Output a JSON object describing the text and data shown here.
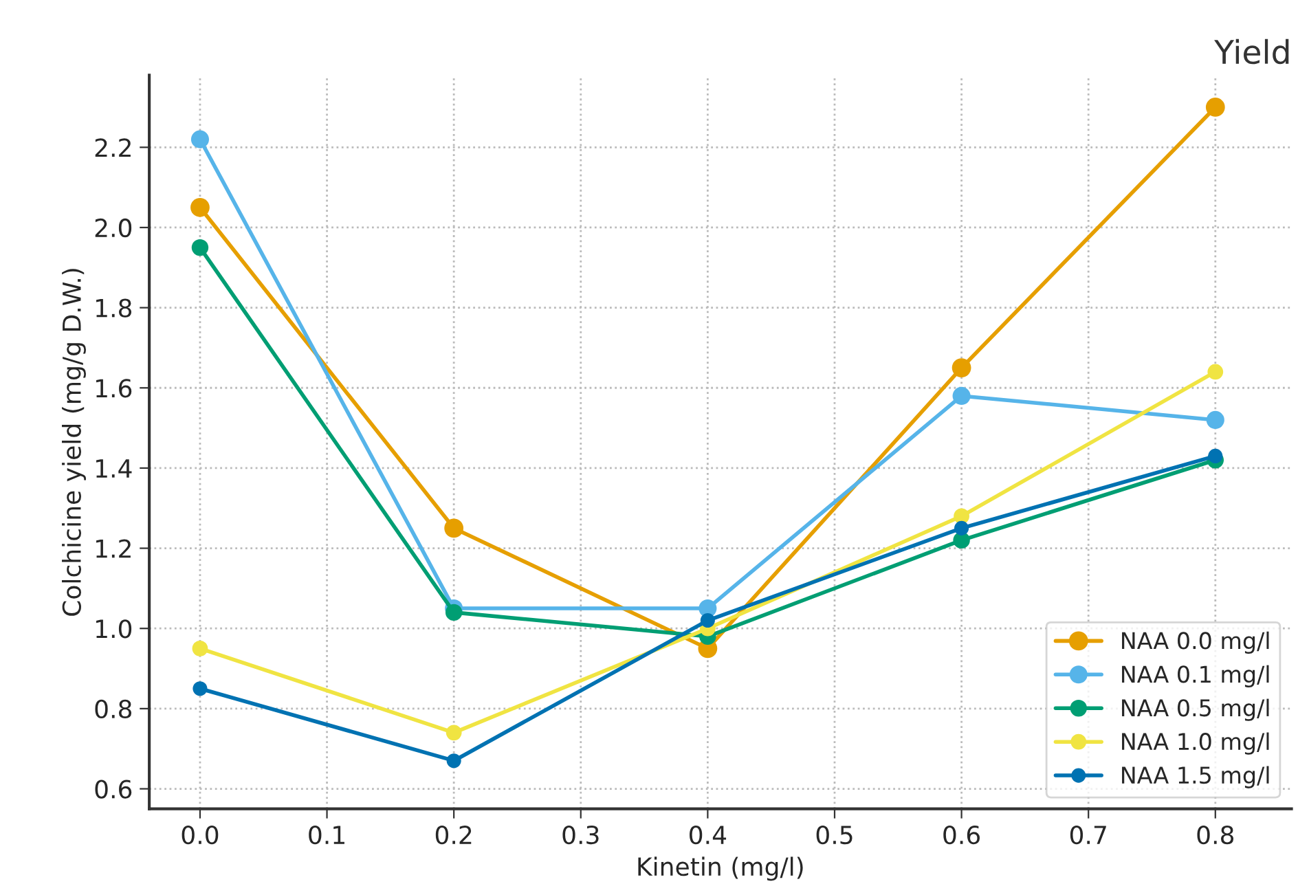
{
  "chart_data": {
    "type": "line",
    "title": "Yield",
    "xlabel": "Kinetin (mg/l)",
    "ylabel": "Colchicine yield (mg/g D.W.)",
    "x": [
      0.0,
      0.2,
      0.4,
      0.6,
      0.8
    ],
    "series": [
      {
        "name": "NAA 0.0 mg/l",
        "color": "#e69f00",
        "values": [
          2.05,
          1.25,
          0.95,
          1.65,
          2.3
        ]
      },
      {
        "name": "NAA 0.1 mg/l",
        "color": "#56b4e9",
        "values": [
          2.22,
          1.05,
          1.05,
          1.58,
          1.52
        ]
      },
      {
        "name": "NAA 0.5 mg/l",
        "color": "#009e73",
        "values": [
          1.95,
          1.04,
          0.98,
          1.22,
          1.42
        ]
      },
      {
        "name": "NAA 1.0 mg/l",
        "color": "#f0e442",
        "values": [
          0.95,
          0.74,
          1.0,
          1.28,
          1.64
        ]
      },
      {
        "name": "NAA 1.5 mg/l",
        "color": "#0072b2",
        "values": [
          0.85,
          0.67,
          1.02,
          1.25,
          1.43
        ]
      }
    ],
    "xlim": [
      -0.04,
      0.86
    ],
    "xticks": [
      {
        "value": 0.0,
        "label": "0.0"
      },
      0.1,
      0.2,
      0.3,
      0.4,
      0.5,
      0.6,
      0.7,
      0.8
    ],
    "ylim": [
      0.55,
      2.38
    ],
    "yticks": [
      0.6,
      0.8,
      {
        "value": 1.0,
        "label": "1.0"
      },
      1.2,
      1.4,
      1.6,
      1.8,
      {
        "value": 2.0,
        "label": "2.0"
      },
      2.2
    ],
    "grid": true,
    "legend": "bottom right",
    "marker": "circle",
    "line_style": "solid"
  }
}
